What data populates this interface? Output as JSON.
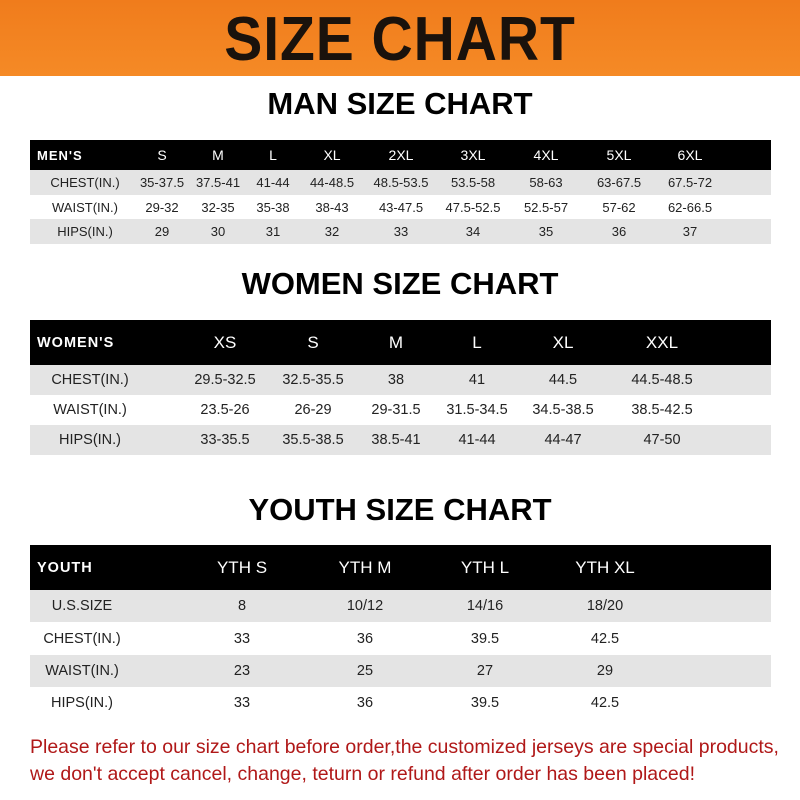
{
  "banner": {
    "title": "SIZE CHART",
    "color": "#f58a26"
  },
  "men": {
    "title": "MAN SIZE CHART",
    "header": [
      "MEN'S",
      "S",
      "M",
      "L",
      "XL",
      "2XL",
      "3XL",
      "4XL",
      "5XL",
      "6XL"
    ],
    "rows": [
      [
        "CHEST(IN.)",
        "35-37.5",
        "37.5-41",
        "41-44",
        "44-48.5",
        "48.5-53.5",
        "53.5-58",
        "58-63",
        "63-67.5",
        "67.5-72"
      ],
      [
        "WAIST(IN.)",
        "29-32",
        "32-35",
        "35-38",
        "38-43",
        "43-47.5",
        "47.5-52.5",
        "52.5-57",
        "57-62",
        "62-66.5"
      ],
      [
        "HIPS(IN.)",
        "29",
        "30",
        "31",
        "32",
        "33",
        "34",
        "35",
        "36",
        "37"
      ]
    ]
  },
  "women": {
    "title": "WOMEN SIZE CHART",
    "header": [
      "WOMEN'S",
      "XS",
      "S",
      "M",
      "L",
      "XL",
      "XXL"
    ],
    "rows": [
      [
        "CHEST(IN.)",
        "29.5-32.5",
        "32.5-35.5",
        "38",
        "41",
        "44.5",
        "44.5-48.5"
      ],
      [
        "WAIST(IN.)",
        "23.5-26",
        "26-29",
        "29-31.5",
        "31.5-34.5",
        "34.5-38.5",
        "38.5-42.5"
      ],
      [
        "HIPS(IN.)",
        "33-35.5",
        "35.5-38.5",
        "38.5-41",
        "41-44",
        "44-47",
        "47-50"
      ]
    ]
  },
  "youth": {
    "title": "YOUTH SIZE CHART",
    "header": [
      "YOUTH",
      "YTH S",
      "YTH M",
      "YTH L",
      "YTH XL"
    ],
    "rows": [
      [
        "U.S.SIZE",
        "8",
        "10/12",
        "14/16",
        "18/20"
      ],
      [
        "CHEST(IN.)",
        "33",
        "36",
        "39.5",
        "42.5"
      ],
      [
        "WAIST(IN.)",
        "23",
        "25",
        "27",
        "29"
      ],
      [
        "HIPS(IN.)",
        "33",
        "36",
        "39.5",
        "42.5"
      ]
    ]
  },
  "notice": {
    "line1": "Please refer to our size chart before order,the customized jerseys are special products,",
    "line2": "we don't accept cancel, change, teturn or refund after order has been placed!",
    "color": "#b01818"
  }
}
